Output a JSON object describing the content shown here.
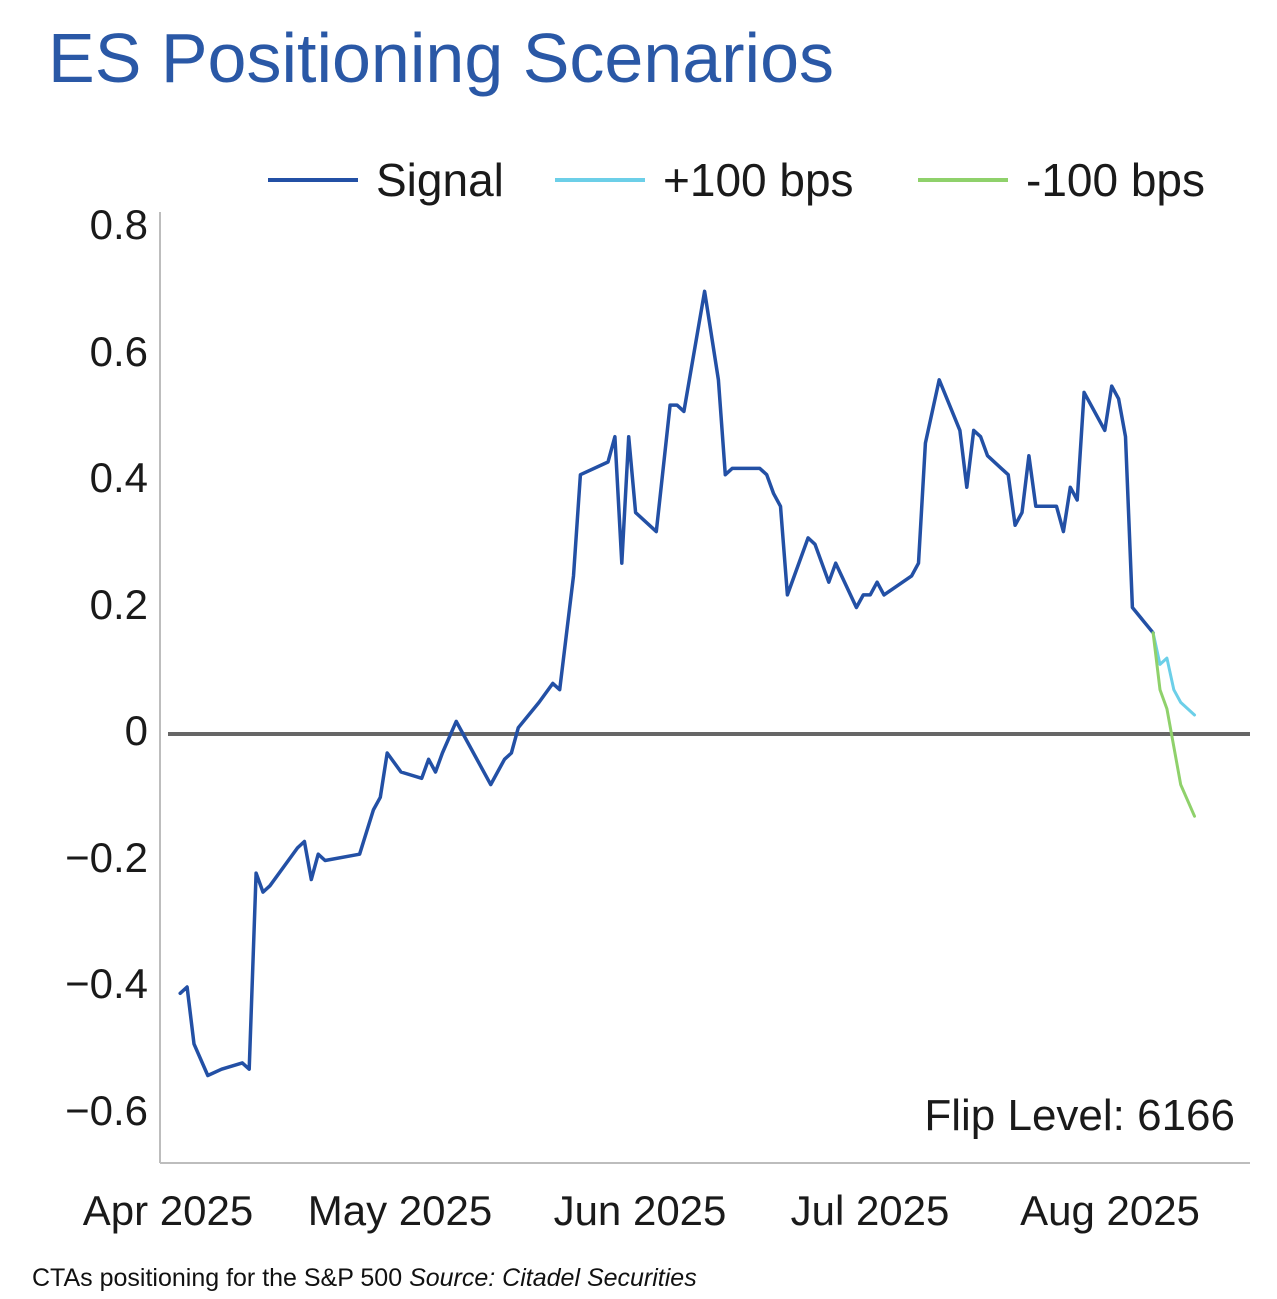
{
  "chart_data": {
    "type": "line",
    "title": "ES Positioning Scenarios",
    "xlabel": "",
    "ylabel": "",
    "x_ticks": [
      "Apr 2025",
      "May 2025",
      "Jun 2025",
      "Jul 2025",
      "Aug 2025"
    ],
    "y_ticks": [
      "0.8",
      "0.6",
      "0.4",
      "0.2",
      "0",
      "−0.2",
      "−0.4",
      "−0.6"
    ],
    "ylim": [
      -0.68,
      0.82
    ],
    "x_range": [
      "2025-04-02",
      "2025-08-31"
    ],
    "grid": false,
    "zero_line": true,
    "legend_position": "top-right",
    "annotation": "Flip Level: 6166",
    "series": [
      {
        "name": "Signal",
        "color": "#2350a5",
        "points": [
          [
            "2025-04-03",
            -0.41
          ],
          [
            "2025-04-04",
            -0.4
          ],
          [
            "2025-04-05",
            -0.49
          ],
          [
            "2025-04-07",
            -0.54
          ],
          [
            "2025-04-09",
            -0.53
          ],
          [
            "2025-04-12",
            -0.52
          ],
          [
            "2025-04-13",
            -0.53
          ],
          [
            "2025-04-14",
            -0.22
          ],
          [
            "2025-04-15",
            -0.25
          ],
          [
            "2025-04-16",
            -0.24
          ],
          [
            "2025-04-20",
            -0.18
          ],
          [
            "2025-04-21",
            -0.17
          ],
          [
            "2025-04-22",
            -0.23
          ],
          [
            "2025-04-23",
            -0.19
          ],
          [
            "2025-04-24",
            -0.2
          ],
          [
            "2025-04-29",
            -0.19
          ],
          [
            "2025-05-01",
            -0.12
          ],
          [
            "2025-05-02",
            -0.1
          ],
          [
            "2025-05-03",
            -0.03
          ],
          [
            "2025-05-05",
            -0.06
          ],
          [
            "2025-05-08",
            -0.07
          ],
          [
            "2025-05-09",
            -0.04
          ],
          [
            "2025-05-10",
            -0.06
          ],
          [
            "2025-05-11",
            -0.03
          ],
          [
            "2025-05-13",
            0.02
          ],
          [
            "2025-05-15",
            -0.02
          ],
          [
            "2025-05-18",
            -0.08
          ],
          [
            "2025-05-20",
            -0.04
          ],
          [
            "2025-05-21",
            -0.03
          ],
          [
            "2025-05-22",
            0.01
          ],
          [
            "2025-05-25",
            0.05
          ],
          [
            "2025-05-27",
            0.08
          ],
          [
            "2025-05-28",
            0.07
          ],
          [
            "2025-05-30",
            0.25
          ],
          [
            "2025-05-31",
            0.41
          ],
          [
            "2025-06-04",
            0.43
          ],
          [
            "2025-06-05",
            0.47
          ],
          [
            "2025-06-06",
            0.27
          ],
          [
            "2025-06-07",
            0.47
          ],
          [
            "2025-06-08",
            0.35
          ],
          [
            "2025-06-11",
            0.32
          ],
          [
            "2025-06-13",
            0.52
          ],
          [
            "2025-06-14",
            0.52
          ],
          [
            "2025-06-15",
            0.51
          ],
          [
            "2025-06-18",
            0.7
          ],
          [
            "2025-06-20",
            0.56
          ],
          [
            "2025-06-21",
            0.41
          ],
          [
            "2025-06-22",
            0.42
          ],
          [
            "2025-06-26",
            0.42
          ],
          [
            "2025-06-27",
            0.41
          ],
          [
            "2025-06-28",
            0.38
          ],
          [
            "2025-06-29",
            0.36
          ],
          [
            "2025-06-30",
            0.22
          ],
          [
            "2025-07-01",
            0.25
          ],
          [
            "2025-07-03",
            0.31
          ],
          [
            "2025-07-04",
            0.3
          ],
          [
            "2025-07-06",
            0.24
          ],
          [
            "2025-07-07",
            0.27
          ],
          [
            "2025-07-10",
            0.2
          ],
          [
            "2025-07-11",
            0.22
          ],
          [
            "2025-07-12",
            0.22
          ],
          [
            "2025-07-13",
            0.24
          ],
          [
            "2025-07-14",
            0.22
          ],
          [
            "2025-07-18",
            0.25
          ],
          [
            "2025-07-19",
            0.27
          ],
          [
            "2025-07-20",
            0.46
          ],
          [
            "2025-07-22",
            0.56
          ],
          [
            "2025-07-25",
            0.48
          ],
          [
            "2025-07-26",
            0.39
          ],
          [
            "2025-07-27",
            0.48
          ],
          [
            "2025-07-28",
            0.47
          ],
          [
            "2025-07-29",
            0.44
          ],
          [
            "2025-07-31",
            0.42
          ],
          [
            "2025-08-01",
            0.41
          ],
          [
            "2025-08-02",
            0.33
          ],
          [
            "2025-08-03",
            0.35
          ],
          [
            "2025-08-04",
            0.44
          ],
          [
            "2025-08-05",
            0.36
          ],
          [
            "2025-08-08",
            0.36
          ],
          [
            "2025-08-09",
            0.32
          ],
          [
            "2025-08-10",
            0.39
          ],
          [
            "2025-08-11",
            0.37
          ],
          [
            "2025-08-12",
            0.54
          ],
          [
            "2025-08-15",
            0.48
          ],
          [
            "2025-08-16",
            0.55
          ],
          [
            "2025-08-17",
            0.53
          ],
          [
            "2025-08-18",
            0.47
          ],
          [
            "2025-08-19",
            0.2
          ],
          [
            "2025-08-22",
            0.16
          ]
        ]
      },
      {
        "name": "+100 bps",
        "color": "#6ccfe8",
        "points": [
          [
            "2025-08-22",
            0.16
          ],
          [
            "2025-08-23",
            0.11
          ],
          [
            "2025-08-24",
            0.12
          ],
          [
            "2025-08-25",
            0.07
          ],
          [
            "2025-08-26",
            0.05
          ],
          [
            "2025-08-28",
            0.03
          ]
        ]
      },
      {
        "name": "-100 bps",
        "color": "#8fd16b",
        "points": [
          [
            "2025-08-22",
            0.16
          ],
          [
            "2025-08-23",
            0.07
          ],
          [
            "2025-08-24",
            0.04
          ],
          [
            "2025-08-25",
            -0.02
          ],
          [
            "2025-08-26",
            -0.08
          ],
          [
            "2025-08-28",
            -0.13
          ]
        ]
      }
    ]
  },
  "caption": {
    "text": "CTAs positioning for the S&P 500",
    "source": "Source: Citadel Securities"
  }
}
